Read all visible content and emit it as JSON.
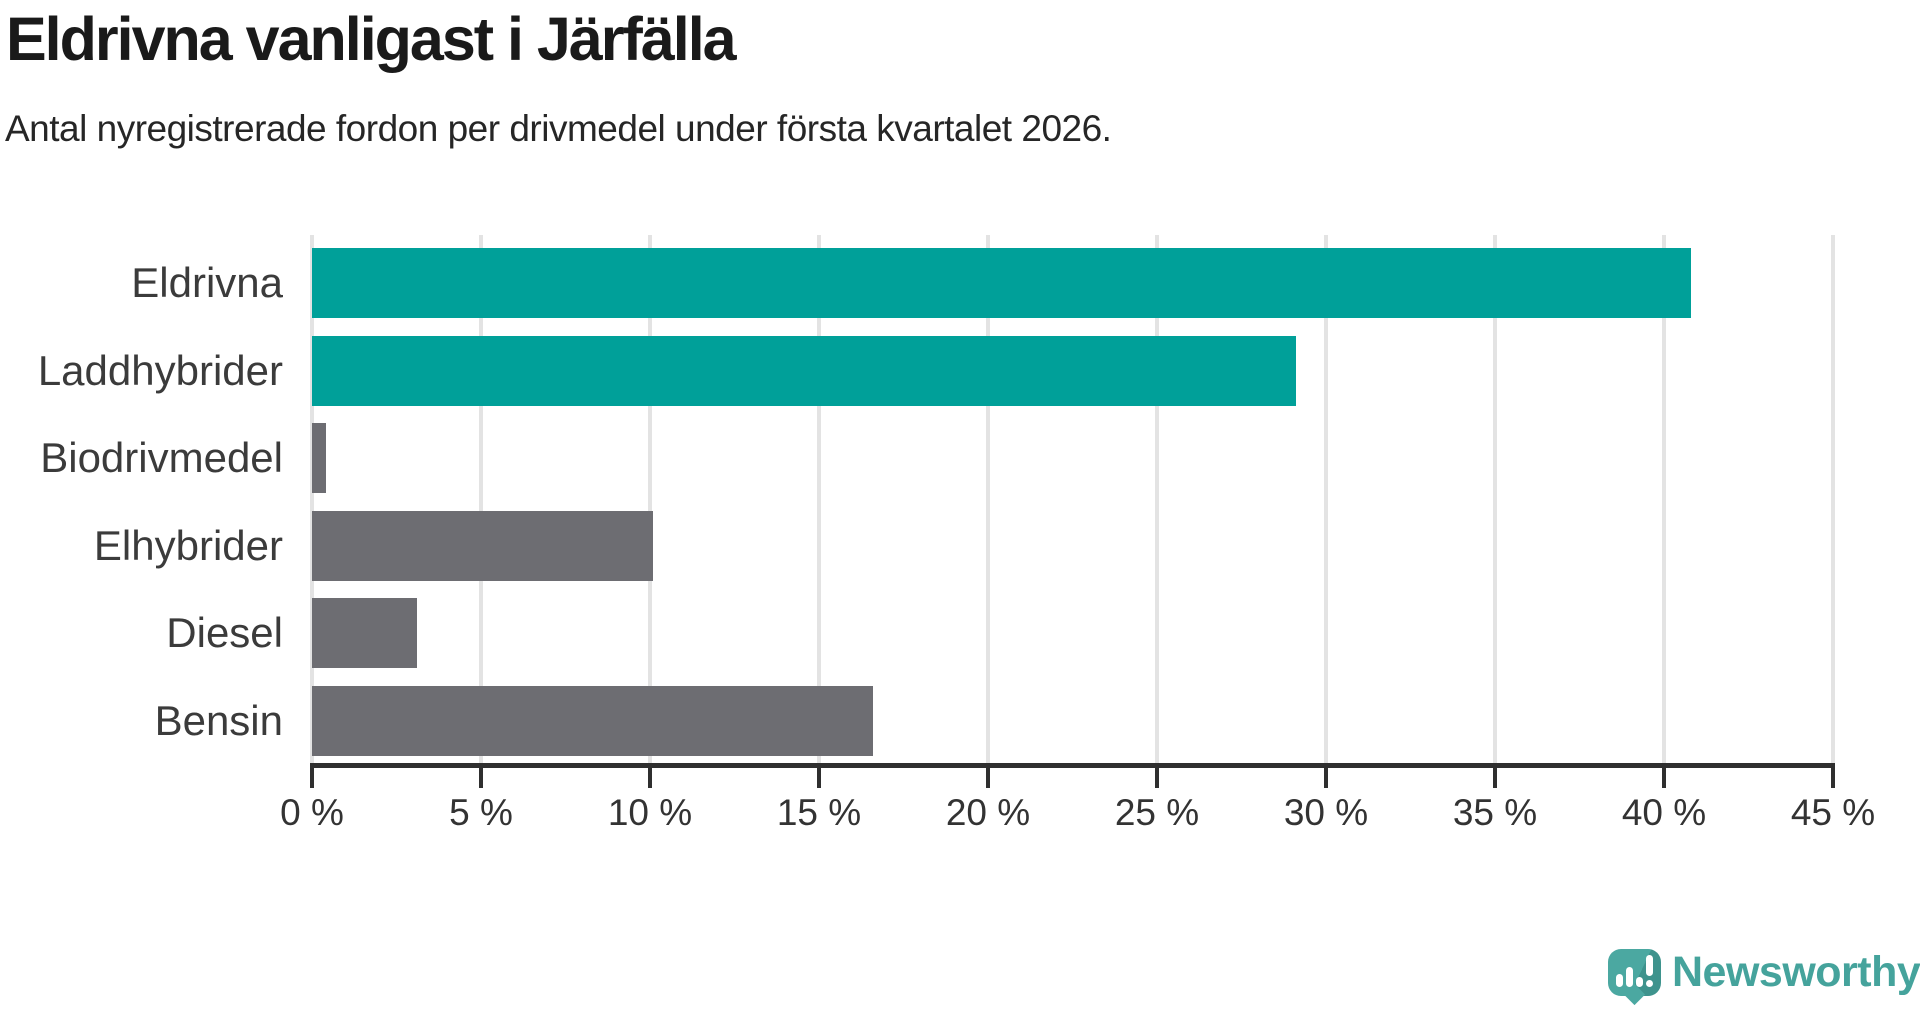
{
  "header": {
    "title": "Eldrivna vanligast i Järfälla",
    "subtitle": "Antal nyregistrerade fordon per drivmedel under första kvartalet 2026."
  },
  "chart_data": {
    "type": "bar",
    "orientation": "horizontal",
    "title": "Eldrivna vanligast i Järfälla",
    "subtitle": "Antal nyregistrerade fordon per drivmedel under första kvartalet 2026.",
    "categories": [
      "Eldrivna",
      "Laddhybrider",
      "Biodrivmedel",
      "Elhybrider",
      "Diesel",
      "Bensin"
    ],
    "values": [
      40.8,
      29.1,
      0.4,
      10.1,
      3.1,
      16.6
    ],
    "unit": "%",
    "xlim": [
      0,
      45
    ],
    "xticks": [
      0,
      5,
      10,
      15,
      20,
      25,
      30,
      35,
      40,
      45
    ],
    "xtick_suffix": " %",
    "grid": true,
    "legend": "none",
    "colors": {
      "highlight": "#00a099",
      "default": "#6d6d72",
      "bar_roles": [
        "highlight",
        "highlight",
        "default",
        "default",
        "default",
        "default"
      ],
      "gridline": "#e3e3e3",
      "axis": "#2f2f2f"
    }
  },
  "branding": {
    "logo_text": "Newsworthy",
    "logo_text_color": "#45a39c",
    "logo_icon_color": "#4ba8a1",
    "logo_icon": "newsworthy-chart-bubble-icon"
  }
}
